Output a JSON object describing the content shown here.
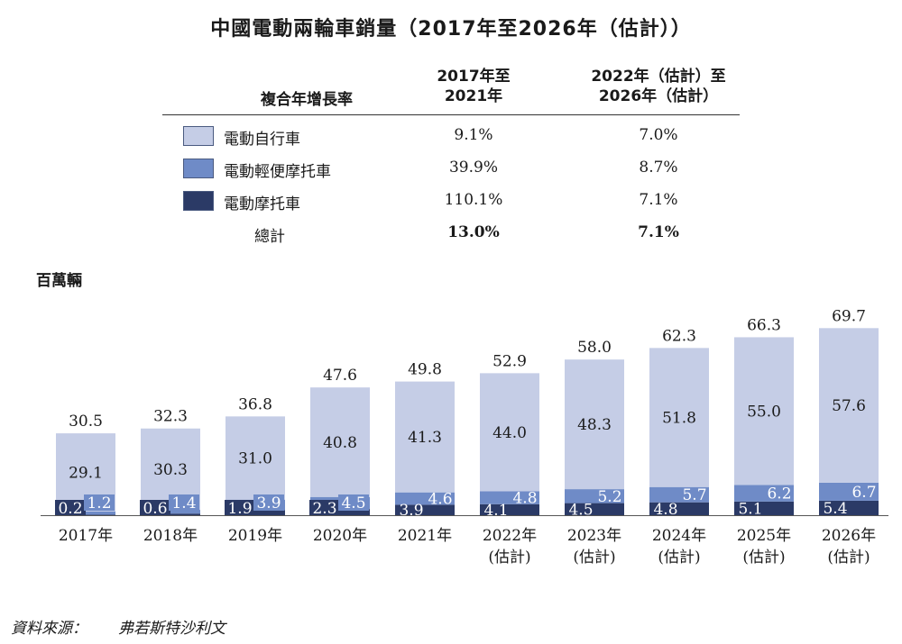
{
  "title": "中國電動兩輪車銷量（2017年至2026年（估計））",
  "table": {
    "header_label": "複合年增長率",
    "col1_header_line1": "2017年至",
    "col1_header_line2": "2021年",
    "col2_header_line1": "2022年（估計）至",
    "col2_header_line2": "2026年（估計）",
    "rows": [
      {
        "label": "電動自行車",
        "cagr1": "9.1%",
        "cagr2": "7.0%",
        "color": "#c5cde6"
      },
      {
        "label": "電動輕便摩托車",
        "cagr1": "39.9%",
        "cagr2": "8.7%",
        "color": "#6f8bc7"
      },
      {
        "label": "電動摩托車",
        "cagr1": "110.1%",
        "cagr2": "7.1%",
        "color": "#2b3a66"
      }
    ],
    "total": {
      "label": "總計",
      "cagr1": "13.0%",
      "cagr2": "7.1%"
    }
  },
  "unit_label": "百萬輛",
  "source": {
    "label": "資料來源：",
    "name": "弗若斯特沙利文"
  },
  "chart_data": {
    "type": "bar",
    "stacked": true,
    "categories": [
      [
        "2017年"
      ],
      [
        "2018年"
      ],
      [
        "2019年"
      ],
      [
        "2020年"
      ],
      [
        "2021年"
      ],
      [
        "2022年",
        "(估計)"
      ],
      [
        "2023年",
        "(估計)"
      ],
      [
        "2024年",
        "(估計)"
      ],
      [
        "2025年",
        "(估計)"
      ],
      [
        "2026年",
        "(估計)"
      ]
    ],
    "series": [
      {
        "name": "電動摩托車",
        "values": [
          0.2,
          0.6,
          1.9,
          2.3,
          3.9,
          4.1,
          4.5,
          4.8,
          5.1,
          5.4
        ],
        "color": "#2b3a66"
      },
      {
        "name": "電動輕便摩托車",
        "values": [
          1.2,
          1.4,
          3.9,
          4.5,
          4.6,
          4.8,
          5.2,
          5.7,
          6.2,
          6.7
        ],
        "color": "#6f8bc7"
      },
      {
        "name": "電動自行車",
        "values": [
          29.1,
          30.3,
          31.0,
          40.8,
          41.3,
          44.0,
          48.3,
          51.8,
          55.0,
          57.6
        ],
        "color": "#c5cde6"
      }
    ],
    "totals": [
      30.5,
      32.3,
      36.8,
      47.6,
      49.8,
      52.9,
      58.0,
      62.3,
      66.3,
      69.7
    ],
    "ylabel": "百萬輛"
  }
}
